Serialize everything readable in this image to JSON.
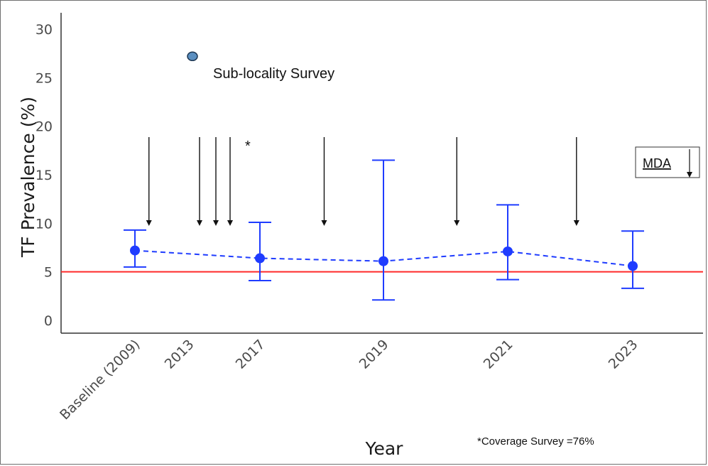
{
  "chart_data": {
    "type": "scatter",
    "title": "",
    "xlabel": "Year",
    "ylabel": "TF Prevalence (%)",
    "ylim": [
      0,
      30
    ],
    "yticks": [
      0,
      5,
      10,
      15,
      20,
      25,
      30
    ],
    "categories": [
      "Baseline (2009)",
      "2013",
      "2017",
      "2019",
      "2021",
      "2023"
    ],
    "series": [
      {
        "points": [
          {
            "x": "Baseline (2009)",
            "y": 7.2,
            "lo": 5.5,
            "hi": 9.3
          },
          {
            "x": "2017",
            "y": 6.4,
            "lo": 4.1,
            "hi": 10.1
          },
          {
            "x": "2019",
            "y": 6.1,
            "lo": 2.1,
            "hi": 16.5
          },
          {
            "x": "2021",
            "y": 7.1,
            "lo": 4.2,
            "hi": 11.9
          },
          {
            "x": "2023",
            "y": 5.6,
            "lo": 3.3,
            "hi": 9.2
          }
        ],
        "color": "#1f3cff"
      },
      {
        "points": [
          {
            "x": "2013",
            "y": 27.2
          }
        ],
        "color": "#5b8fc0"
      }
    ],
    "threshold": {
      "y": 5,
      "color": "#ff2a2a"
    },
    "annotations": {
      "sub_locality_label": "Sub-locality Survey",
      "mda_label": "MDA",
      "asterisk": "*",
      "coverage_note": "*Coverage Survey =76%"
    },
    "mda_arrows": [
      {
        "after": "Baseline (2009)",
        "frac": 0.26
      },
      {
        "after": "2013",
        "frac": 0.15
      },
      {
        "after": "2013",
        "frac": 0.38
      },
      {
        "after": "2013",
        "frac": 0.58
      },
      {
        "after": "2017",
        "frac": 0.52
      },
      {
        "after": "2019",
        "frac": 0.59
      },
      {
        "after": "2021",
        "frac": 0.55
      }
    ],
    "grid": false
  }
}
